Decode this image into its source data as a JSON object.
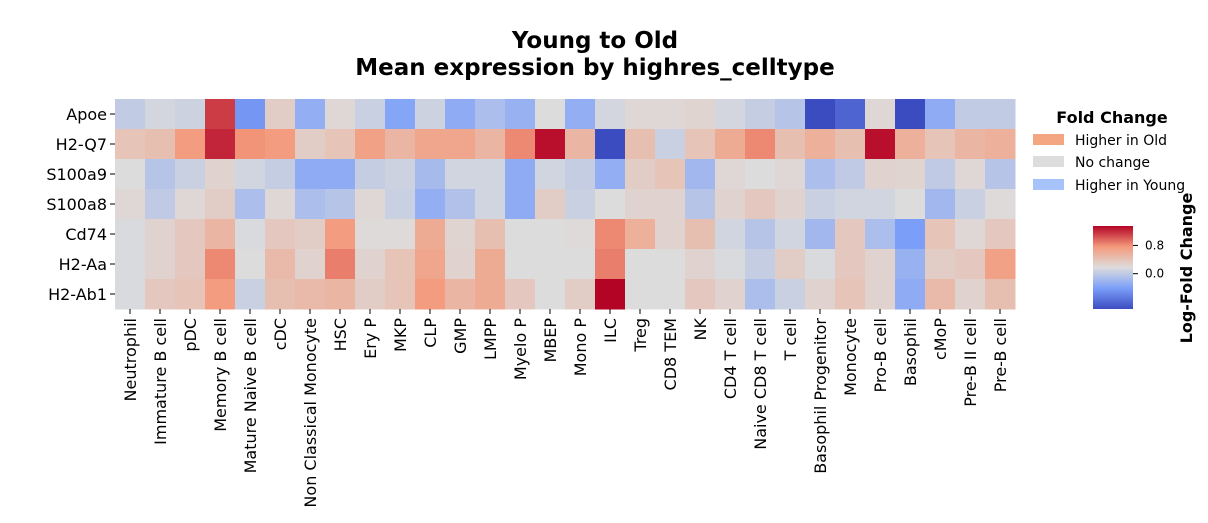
{
  "chart_data": {
    "type": "heatmap",
    "title_line1": "Young to Old",
    "title_line2": "Mean expression by highres_celltype",
    "rows": [
      "Apoe",
      "H2-Q7",
      "S100a9",
      "S100a8",
      "Cd74",
      "H2-Aa",
      "H2-Ab1"
    ],
    "columns": [
      "Neutrophil",
      "Immature B cell",
      "pDC",
      "Memory B cell",
      "Mature Naive B cell",
      "cDC",
      "Non Classical Monocyte",
      "HSC",
      "Ery P",
      "MKP",
      "CLP",
      "GMP",
      "LMPP",
      "Myelo P",
      "MBEP",
      "Mono P",
      "ILC",
      "Treg",
      "CD8 TEM",
      "NK",
      "CD4 T cell",
      "Naive CD8 T cell",
      "T cell",
      "Basophil Progenitor",
      "Monocyte",
      "Pro-B cell",
      "Basophil",
      "cMoP",
      "Pre-B II cell",
      "Pre-B cell"
    ],
    "values": [
      [
        -0.14,
        -0.05,
        -0.08,
        1.1,
        -0.55,
        0.15,
        -0.38,
        0.05,
        -0.1,
        -0.45,
        -0.08,
        -0.4,
        -0.25,
        -0.35,
        0.0,
        -0.38,
        -0.05,
        0.05,
        0.05,
        0.08,
        -0.05,
        -0.12,
        -0.2,
        -1.0,
        -0.85,
        0.05,
        -1.0,
        -0.4,
        -0.14,
        -0.14
      ],
      [
        0.25,
        0.3,
        0.65,
        1.2,
        0.7,
        0.65,
        0.15,
        0.25,
        0.6,
        0.4,
        0.55,
        0.55,
        0.4,
        0.75,
        1.3,
        0.4,
        -1.0,
        0.3,
        -0.1,
        0.25,
        0.5,
        0.75,
        0.3,
        0.45,
        0.3,
        1.3,
        0.45,
        0.25,
        0.4,
        0.45
      ],
      [
        0.0,
        -0.2,
        -0.1,
        0.1,
        -0.06,
        -0.12,
        -0.4,
        -0.4,
        -0.12,
        -0.08,
        -0.28,
        -0.06,
        -0.06,
        -0.4,
        -0.06,
        -0.12,
        -0.38,
        0.15,
        0.25,
        -0.3,
        0.05,
        0.0,
        0.05,
        -0.25,
        -0.15,
        0.1,
        0.08,
        -0.15,
        0.05,
        -0.2
      ],
      [
        0.05,
        -0.15,
        0.05,
        0.15,
        -0.25,
        0.05,
        -0.25,
        -0.2,
        0.05,
        -0.1,
        -0.38,
        -0.22,
        -0.06,
        -0.4,
        0.15,
        -0.1,
        0.0,
        0.1,
        0.1,
        -0.2,
        0.1,
        0.2,
        0.1,
        -0.1,
        -0.06,
        -0.06,
        0.0,
        -0.3,
        -0.1,
        0.02
      ],
      [
        -0.02,
        0.1,
        0.2,
        0.4,
        -0.02,
        0.2,
        0.15,
        0.65,
        0.02,
        0.02,
        0.5,
        0.08,
        0.3,
        0.0,
        0.0,
        0.02,
        0.75,
        0.45,
        0.1,
        0.3,
        -0.06,
        -0.2,
        -0.06,
        -0.3,
        0.2,
        -0.25,
        -0.5,
        0.25,
        0.05,
        0.2
      ],
      [
        -0.02,
        0.1,
        0.2,
        0.75,
        0.0,
        0.35,
        0.1,
        0.8,
        0.1,
        0.25,
        0.55,
        0.1,
        0.5,
        0.0,
        0.0,
        0.0,
        0.8,
        0.0,
        0.0,
        0.1,
        -0.02,
        -0.12,
        0.15,
        -0.02,
        0.2,
        0.1,
        -0.35,
        0.15,
        0.2,
        0.6
      ],
      [
        -0.02,
        0.2,
        0.25,
        0.65,
        -0.1,
        0.3,
        0.35,
        0.4,
        0.15,
        0.25,
        0.65,
        0.4,
        0.5,
        0.2,
        0.0,
        0.15,
        1.35,
        0.0,
        0.0,
        0.2,
        0.1,
        -0.25,
        -0.1,
        0.1,
        0.25,
        0.1,
        -0.4,
        0.35,
        0.1,
        0.3
      ]
    ],
    "vmin": -1.0,
    "vmax": 1.35,
    "colormap": "coolwarm",
    "legend": {
      "title": "Fold Change",
      "placement": "right",
      "entries": [
        {
          "label": "Higher in Old",
          "color": "#f4a582"
        },
        {
          "label": "No change",
          "color": "#dddddd"
        },
        {
          "label": "Higher in Young",
          "color": "#a6c4fb"
        }
      ]
    },
    "colorbar": {
      "label": "Log-Fold Change",
      "ticks": [
        0.8,
        0.0
      ],
      "tick_labels": [
        "0.8",
        "0.0"
      ]
    }
  }
}
